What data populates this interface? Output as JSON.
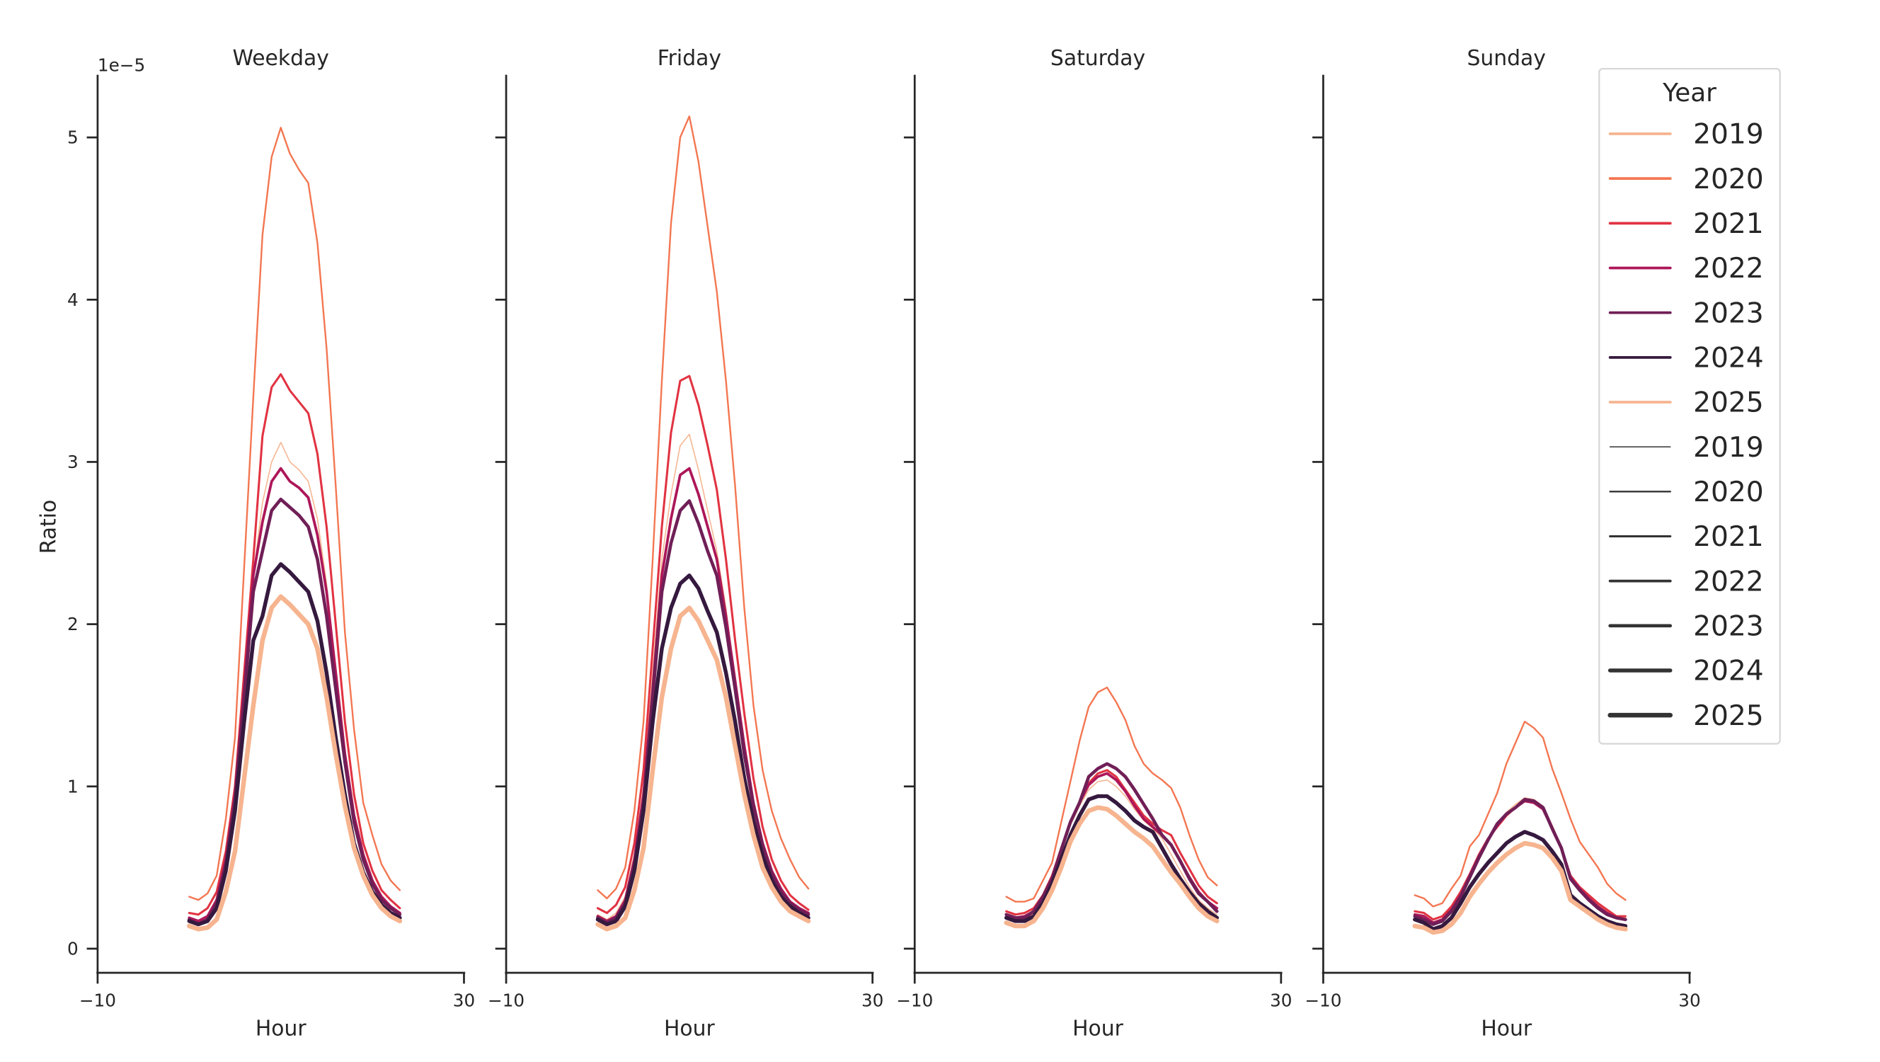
{
  "chart_data": {
    "type": "line",
    "xlabel": "Hour",
    "ylabel": "Ratio",
    "y_offset_label": "1e−5",
    "xlim": [
      -10,
      30
    ],
    "ylim": [
      -0.15,
      5.4
    ],
    "xticks": [
      -10,
      30
    ],
    "yticks": [
      0,
      1,
      2,
      3,
      4,
      5
    ],
    "grid": false,
    "legend": {
      "title": "Year",
      "placement": "right",
      "hue_entries": [
        "2019",
        "2020",
        "2021",
        "2022",
        "2023",
        "2024",
        "2025"
      ],
      "size_entries": [
        "2019",
        "2020",
        "2021",
        "2022",
        "2023",
        "2024",
        "2025"
      ]
    },
    "colors": {
      "2019": "#f6b48f",
      "2020": "#f37651",
      "2021": "#e13342",
      "2022": "#ad1759",
      "2023": "#701f57",
      "2024": "#35193e",
      "2025": "#f6b48f",
      "size_legend": "#333333"
    },
    "x": [
      0,
      1,
      2,
      3,
      4,
      5,
      6,
      7,
      8,
      9,
      10,
      11,
      12,
      13,
      14,
      15,
      16,
      17,
      18,
      19,
      20,
      21,
      22,
      23
    ],
    "panels": [
      {
        "title": "Weekday",
        "series": [
          {
            "name": "2019",
            "values": [
              0.18,
              0.16,
              0.2,
              0.3,
              0.55,
              0.95,
              1.6,
              2.3,
              2.75,
              3.0,
              3.12,
              3.0,
              2.95,
              2.88,
              2.65,
              2.25,
              1.7,
              1.2,
              0.8,
              0.55,
              0.4,
              0.3,
              0.25,
              0.21
            ]
          },
          {
            "name": "2020",
            "values": [
              0.32,
              0.3,
              0.34,
              0.45,
              0.8,
              1.3,
              2.35,
              3.4,
              4.4,
              4.88,
              5.06,
              4.9,
              4.8,
              4.72,
              4.35,
              3.7,
              2.85,
              1.95,
              1.35,
              0.9,
              0.7,
              0.52,
              0.42,
              0.36
            ]
          },
          {
            "name": "2021",
            "values": [
              0.22,
              0.21,
              0.25,
              0.35,
              0.6,
              1.0,
              1.7,
              2.4,
              3.16,
              3.46,
              3.54,
              3.44,
              3.37,
              3.3,
              3.05,
              2.6,
              2.0,
              1.4,
              0.95,
              0.65,
              0.48,
              0.36,
              0.3,
              0.25
            ]
          },
          {
            "name": "2022",
            "values": [
              0.19,
              0.17,
              0.2,
              0.3,
              0.55,
              0.95,
              1.6,
              2.3,
              2.63,
              2.88,
              2.96,
              2.88,
              2.84,
              2.78,
              2.55,
              2.2,
              1.7,
              1.2,
              0.82,
              0.58,
              0.42,
              0.32,
              0.26,
              0.22
            ]
          },
          {
            "name": "2023",
            "values": [
              0.18,
              0.15,
              0.18,
              0.28,
              0.52,
              0.92,
              1.55,
              2.2,
              2.45,
              2.7,
              2.77,
              2.72,
              2.67,
              2.6,
              2.4,
              2.05,
              1.6,
              1.15,
              0.78,
              0.55,
              0.4,
              0.3,
              0.25,
              0.21
            ]
          },
          {
            "name": "2024",
            "values": [
              0.17,
              0.15,
              0.17,
              0.25,
              0.48,
              0.85,
              1.4,
              1.9,
              2.05,
              2.3,
              2.37,
              2.32,
              2.26,
              2.2,
              2.02,
              1.7,
              1.3,
              0.95,
              0.65,
              0.47,
              0.35,
              0.27,
              0.22,
              0.19
            ]
          },
          {
            "name": "2025",
            "values": [
              0.14,
              0.12,
              0.13,
              0.18,
              0.35,
              0.6,
              1.05,
              1.5,
              1.9,
              2.1,
              2.17,
              2.12,
              2.06,
              2.0,
              1.85,
              1.55,
              1.2,
              0.88,
              0.62,
              0.45,
              0.33,
              0.25,
              0.2,
              0.17
            ]
          }
        ]
      },
      {
        "title": "Friday",
        "series": [
          {
            "name": "2019",
            "values": [
              0.21,
              0.18,
              0.22,
              0.32,
              0.58,
              1.0,
              1.7,
              2.4,
              2.8,
              3.1,
              3.17,
              2.95,
              2.7,
              2.45,
              2.1,
              1.65,
              1.25,
              0.9,
              0.65,
              0.48,
              0.36,
              0.28,
              0.24,
              0.21
            ]
          },
          {
            "name": "2020",
            "values": [
              0.36,
              0.31,
              0.37,
              0.5,
              0.85,
              1.4,
              2.4,
              3.5,
              4.47,
              5.0,
              5.13,
              4.85,
              4.45,
              4.05,
              3.5,
              2.85,
              2.1,
              1.5,
              1.1,
              0.85,
              0.68,
              0.55,
              0.44,
              0.37
            ]
          },
          {
            "name": "2021",
            "values": [
              0.25,
              0.22,
              0.27,
              0.38,
              0.65,
              1.1,
              1.85,
              2.6,
              3.18,
              3.5,
              3.53,
              3.35,
              3.1,
              2.83,
              2.4,
              1.9,
              1.45,
              1.05,
              0.75,
              0.55,
              0.42,
              0.33,
              0.28,
              0.24
            ]
          },
          {
            "name": "2022",
            "values": [
              0.2,
              0.17,
              0.2,
              0.3,
              0.55,
              0.95,
              1.6,
              2.3,
              2.65,
              2.92,
              2.96,
              2.8,
              2.6,
              2.4,
              2.05,
              1.65,
              1.25,
              0.9,
              0.65,
              0.48,
              0.37,
              0.29,
              0.25,
              0.22
            ]
          },
          {
            "name": "2023",
            "values": [
              0.19,
              0.16,
              0.19,
              0.28,
              0.52,
              0.9,
              1.55,
              2.2,
              2.5,
              2.7,
              2.76,
              2.62,
              2.45,
              2.3,
              1.98,
              1.6,
              1.2,
              0.88,
              0.63,
              0.46,
              0.35,
              0.28,
              0.24,
              0.21
            ]
          },
          {
            "name": "2024",
            "values": [
              0.18,
              0.15,
              0.17,
              0.26,
              0.48,
              0.85,
              1.4,
              1.85,
              2.1,
              2.25,
              2.3,
              2.22,
              2.08,
              1.95,
              1.7,
              1.4,
              1.05,
              0.78,
              0.57,
              0.42,
              0.32,
              0.26,
              0.22,
              0.19
            ]
          },
          {
            "name": "2025",
            "values": [
              0.15,
              0.12,
              0.14,
              0.19,
              0.36,
              0.62,
              1.1,
              1.55,
              1.85,
              2.05,
              2.1,
              2.02,
              1.9,
              1.78,
              1.55,
              1.25,
              0.95,
              0.7,
              0.5,
              0.38,
              0.29,
              0.23,
              0.2,
              0.17
            ]
          }
        ]
      },
      {
        "title": "Saturday",
        "series": [
          {
            "name": "2019",
            "values": [
              0.2,
              0.18,
              0.18,
              0.22,
              0.31,
              0.43,
              0.6,
              0.76,
              0.88,
              0.98,
              1.03,
              1.04,
              1.0,
              0.94,
              0.86,
              0.79,
              0.74,
              0.68,
              0.58,
              0.48,
              0.38,
              0.3,
              0.25,
              0.21
            ]
          },
          {
            "name": "2020",
            "values": [
              0.32,
              0.29,
              0.29,
              0.31,
              0.42,
              0.53,
              0.78,
              1.03,
              1.28,
              1.49,
              1.58,
              1.61,
              1.52,
              1.41,
              1.25,
              1.14,
              1.08,
              1.04,
              0.99,
              0.87,
              0.7,
              0.55,
              0.44,
              0.39
            ]
          },
          {
            "name": "2021",
            "values": [
              0.23,
              0.21,
              0.22,
              0.25,
              0.33,
              0.45,
              0.62,
              0.78,
              0.9,
              1.02,
              1.08,
              1.1,
              1.06,
              0.98,
              0.9,
              0.82,
              0.77,
              0.73,
              0.7,
              0.59,
              0.49,
              0.39,
              0.32,
              0.28
            ]
          },
          {
            "name": "2022",
            "values": [
              0.21,
              0.19,
              0.2,
              0.23,
              0.32,
              0.44,
              0.61,
              0.78,
              0.9,
              1.01,
              1.06,
              1.08,
              1.04,
              0.97,
              0.88,
              0.8,
              0.75,
              0.7,
              0.64,
              0.54,
              0.44,
              0.35,
              0.29,
              0.25
            ]
          },
          {
            "name": "2023",
            "values": [
              0.21,
              0.19,
              0.19,
              0.23,
              0.32,
              0.43,
              0.61,
              0.78,
              0.9,
              1.06,
              1.11,
              1.14,
              1.11,
              1.06,
              0.98,
              0.89,
              0.8,
              0.7,
              0.64,
              0.54,
              0.43,
              0.34,
              0.29,
              0.23
            ]
          },
          {
            "name": "2024",
            "values": [
              0.19,
              0.17,
              0.17,
              0.2,
              0.28,
              0.4,
              0.55,
              0.7,
              0.82,
              0.92,
              0.94,
              0.94,
              0.9,
              0.85,
              0.79,
              0.75,
              0.72,
              0.62,
              0.52,
              0.43,
              0.35,
              0.28,
              0.23,
              0.19
            ]
          },
          {
            "name": "2025",
            "values": [
              0.16,
              0.14,
              0.14,
              0.17,
              0.25,
              0.36,
              0.5,
              0.66,
              0.77,
              0.85,
              0.87,
              0.86,
              0.82,
              0.77,
              0.72,
              0.68,
              0.63,
              0.55,
              0.47,
              0.4,
              0.32,
              0.25,
              0.2,
              0.17
            ]
          }
        ]
      },
      {
        "title": "Sunday",
        "series": [
          {
            "name": "2019",
            "values": [
              0.21,
              0.2,
              0.16,
              0.18,
              0.24,
              0.33,
              0.45,
              0.57,
              0.68,
              0.77,
              0.84,
              0.89,
              0.93,
              0.92,
              0.88,
              0.76,
              0.63,
              0.45,
              0.38,
              0.32,
              0.27,
              0.23,
              0.2,
              0.19
            ]
          },
          {
            "name": "2020",
            "values": [
              0.33,
              0.31,
              0.26,
              0.28,
              0.37,
              0.45,
              0.63,
              0.7,
              0.83,
              0.96,
              1.14,
              1.27,
              1.4,
              1.36,
              1.3,
              1.11,
              0.96,
              0.8,
              0.66,
              0.58,
              0.5,
              0.4,
              0.34,
              0.3
            ]
          },
          {
            "name": "2021",
            "values": [
              0.23,
              0.22,
              0.18,
              0.2,
              0.26,
              0.35,
              0.46,
              0.58,
              0.68,
              0.75,
              0.82,
              0.87,
              0.92,
              0.91,
              0.87,
              0.75,
              0.62,
              0.45,
              0.38,
              0.33,
              0.28,
              0.24,
              0.2,
              0.2
            ]
          },
          {
            "name": "2022",
            "values": [
              0.21,
              0.2,
              0.16,
              0.18,
              0.24,
              0.33,
              0.45,
              0.57,
              0.67,
              0.76,
              0.83,
              0.87,
              0.91,
              0.9,
              0.86,
              0.74,
              0.62,
              0.44,
              0.37,
              0.31,
              0.26,
              0.22,
              0.19,
              0.18
            ]
          },
          {
            "name": "2023",
            "values": [
              0.2,
              0.18,
              0.15,
              0.17,
              0.23,
              0.32,
              0.44,
              0.56,
              0.67,
              0.77,
              0.83,
              0.87,
              0.92,
              0.91,
              0.87,
              0.74,
              0.62,
              0.43,
              0.36,
              0.3,
              0.25,
              0.21,
              0.19,
              0.18
            ]
          },
          {
            "name": "2024",
            "values": [
              0.18,
              0.16,
              0.12,
              0.14,
              0.19,
              0.28,
              0.38,
              0.46,
              0.53,
              0.59,
              0.65,
              0.69,
              0.72,
              0.7,
              0.67,
              0.6,
              0.52,
              0.33,
              0.28,
              0.24,
              0.2,
              0.17,
              0.15,
              0.14
            ]
          },
          {
            "name": "2025",
            "values": [
              0.14,
              0.13,
              0.1,
              0.11,
              0.15,
              0.22,
              0.32,
              0.4,
              0.47,
              0.53,
              0.58,
              0.62,
              0.65,
              0.64,
              0.62,
              0.56,
              0.48,
              0.3,
              0.26,
              0.22,
              0.18,
              0.15,
              0.13,
              0.12
            ]
          }
        ]
      }
    ]
  }
}
